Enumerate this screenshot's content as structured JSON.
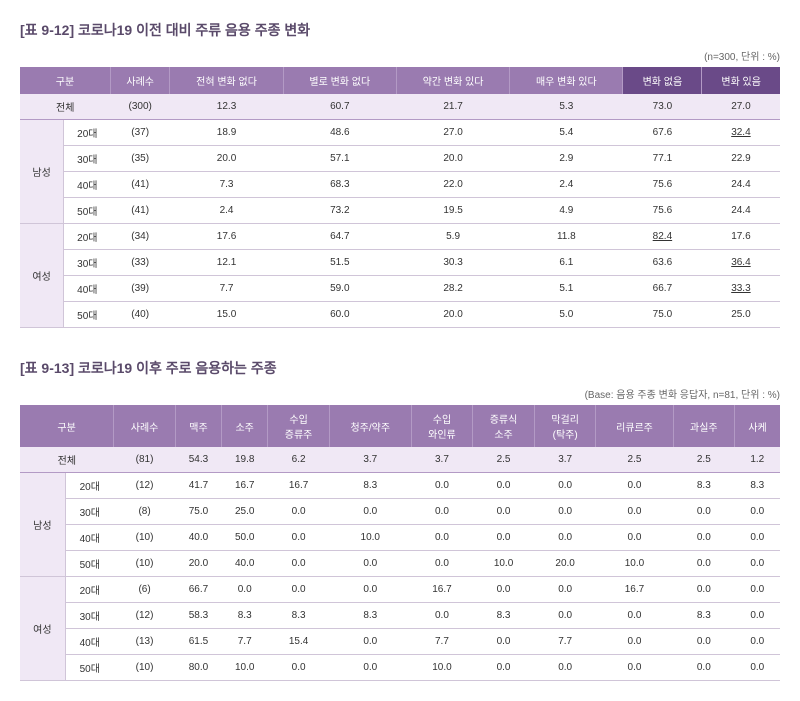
{
  "table1": {
    "title": "[표 9-12] 코로나19 이전 대비 주류 음용 주종 변화",
    "subtitle": "(n=300, 단위 : %)",
    "headers": [
      "구분",
      "사례수",
      "전혀 변화 없다",
      "별로 변화 없다",
      "약간 변화 있다",
      "매우 변화 있다",
      "변화 없음",
      "변화 있음"
    ],
    "total_label": "전체",
    "total": [
      "(300)",
      "12.3",
      "60.7",
      "21.7",
      "5.3",
      "73.0",
      "27.0"
    ],
    "groups": [
      {
        "label": "남성",
        "rows": [
          {
            "age": "20대",
            "vals": [
              "(37)",
              "18.9",
              "48.6",
              "27.0",
              "5.4",
              "67.6",
              "32.4"
            ],
            "ul": [
              7
            ]
          },
          {
            "age": "30대",
            "vals": [
              "(35)",
              "20.0",
              "57.1",
              "20.0",
              "2.9",
              "77.1",
              "22.9"
            ],
            "ul": []
          },
          {
            "age": "40대",
            "vals": [
              "(41)",
              "7.3",
              "68.3",
              "22.0",
              "2.4",
              "75.6",
              "24.4"
            ],
            "ul": []
          },
          {
            "age": "50대",
            "vals": [
              "(41)",
              "2.4",
              "73.2",
              "19.5",
              "4.9",
              "75.6",
              "24.4"
            ],
            "ul": []
          }
        ]
      },
      {
        "label": "여성",
        "rows": [
          {
            "age": "20대",
            "vals": [
              "(34)",
              "17.6",
              "64.7",
              "5.9",
              "11.8",
              "82.4",
              "17.6"
            ],
            "ul": [
              6
            ]
          },
          {
            "age": "30대",
            "vals": [
              "(33)",
              "12.1",
              "51.5",
              "30.3",
              "6.1",
              "63.6",
              "36.4"
            ],
            "ul": [
              7
            ]
          },
          {
            "age": "40대",
            "vals": [
              "(39)",
              "7.7",
              "59.0",
              "28.2",
              "5.1",
              "66.7",
              "33.3"
            ],
            "ul": [
              7
            ]
          },
          {
            "age": "50대",
            "vals": [
              "(40)",
              "15.0",
              "60.0",
              "20.0",
              "5.0",
              "75.0",
              "25.0"
            ],
            "ul": []
          }
        ]
      }
    ]
  },
  "table2": {
    "title": "[표 9-13] 코로나19 이후 주로 음용하는 주종",
    "subtitle": "(Base: 음용 주종 변화 응답자, n=81, 단위 : %)",
    "headers": [
      "구분",
      "사례수",
      "맥주",
      "소주",
      "수입\n증류주",
      "청주/약주",
      "수입\n와인류",
      "증류식\n소주",
      "막걸리\n(탁주)",
      "리큐르주",
      "과실주",
      "사케"
    ],
    "total_label": "전체",
    "total": [
      "(81)",
      "54.3",
      "19.8",
      "6.2",
      "3.7",
      "3.7",
      "2.5",
      "3.7",
      "2.5",
      "2.5",
      "1.2"
    ],
    "groups": [
      {
        "label": "남성",
        "rows": [
          {
            "age": "20대",
            "vals": [
              "(12)",
              "41.7",
              "16.7",
              "16.7",
              "8.3",
              "0.0",
              "0.0",
              "0.0",
              "0.0",
              "8.3",
              "8.3"
            ]
          },
          {
            "age": "30대",
            "vals": [
              "(8)",
              "75.0",
              "25.0",
              "0.0",
              "0.0",
              "0.0",
              "0.0",
              "0.0",
              "0.0",
              "0.0",
              "0.0"
            ]
          },
          {
            "age": "40대",
            "vals": [
              "(10)",
              "40.0",
              "50.0",
              "0.0",
              "10.0",
              "0.0",
              "0.0",
              "0.0",
              "0.0",
              "0.0",
              "0.0"
            ]
          },
          {
            "age": "50대",
            "vals": [
              "(10)",
              "20.0",
              "40.0",
              "0.0",
              "0.0",
              "0.0",
              "10.0",
              "20.0",
              "10.0",
              "0.0",
              "0.0"
            ]
          }
        ]
      },
      {
        "label": "여성",
        "rows": [
          {
            "age": "20대",
            "vals": [
              "(6)",
              "66.7",
              "0.0",
              "0.0",
              "0.0",
              "16.7",
              "0.0",
              "0.0",
              "16.7",
              "0.0",
              "0.0"
            ]
          },
          {
            "age": "30대",
            "vals": [
              "(12)",
              "58.3",
              "8.3",
              "8.3",
              "8.3",
              "0.0",
              "8.3",
              "0.0",
              "0.0",
              "8.3",
              "0.0"
            ]
          },
          {
            "age": "40대",
            "vals": [
              "(13)",
              "61.5",
              "7.7",
              "15.4",
              "0.0",
              "7.7",
              "0.0",
              "7.7",
              "0.0",
              "0.0",
              "0.0"
            ]
          },
          {
            "age": "50대",
            "vals": [
              "(10)",
              "80.0",
              "10.0",
              "0.0",
              "0.0",
              "10.0",
              "0.0",
              "0.0",
              "0.0",
              "0.0",
              "0.0"
            ]
          }
        ]
      }
    ]
  }
}
